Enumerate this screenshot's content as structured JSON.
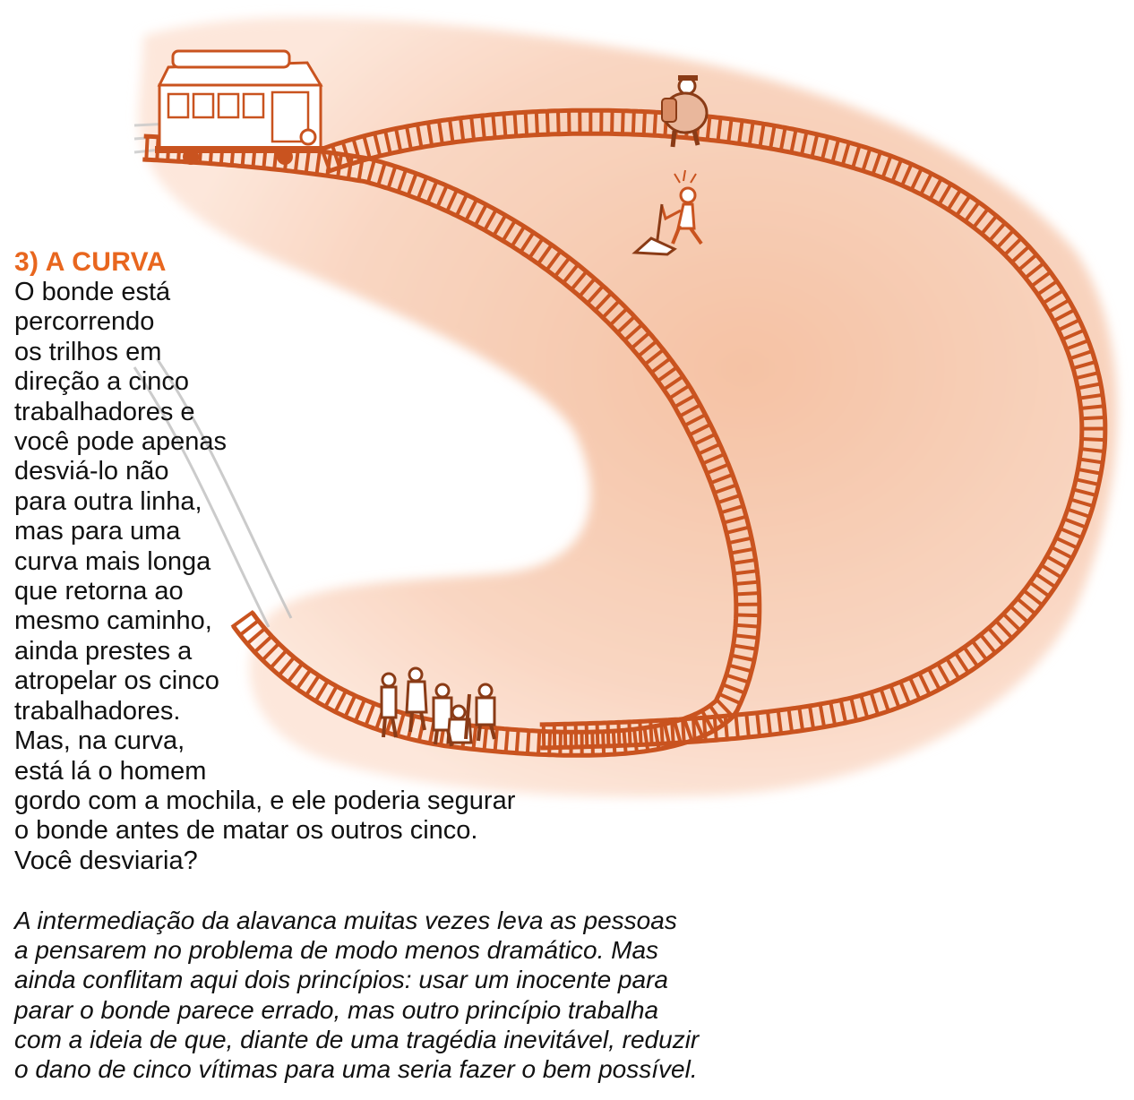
{
  "title": "3) A CURVA",
  "body_lines": [
    "O bonde está",
    "percorrendo",
    "os trilhos em",
    "direção a cinco",
    "trabalhadores e",
    "você pode apenas",
    "desviá-lo não",
    "para outra linha,",
    "mas para uma",
    "curva mais longa",
    "que retorna ao",
    "mesmo caminho,",
    "ainda prestes a",
    "atropelar os cinco",
    "trabalhadores.",
    "Mas, na curva,",
    "está lá o homem",
    "gordo com a mochila, e ele poderia segurar",
    "o bonde antes de matar os outros cinco.",
    "Você desviaria?"
  ],
  "note_lines": [
    "A intermediação da alavanca muitas vezes leva as pessoas",
    "a pensarem no problema de modo menos dramático. Mas",
    "ainda conflitam aqui dois princípios: usar um inocente para",
    "parar o bonde parece errado, mas outro princípio trabalha",
    "com a ideia de que, diante de uma tragédia inevitável, reduzir",
    "o dano de cinco vítimas para uma seria fazer o bem possível."
  ],
  "colors": {
    "accent": "#e8661e",
    "rail": "#c9531f",
    "background_blob": "#f8d2bd"
  }
}
